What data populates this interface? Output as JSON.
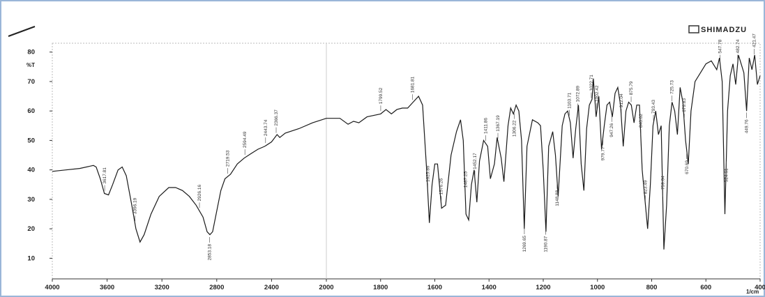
{
  "chart_data": {
    "type": "line",
    "brand": "SHIMADZU",
    "y_label": "%T",
    "x_label": "1/cm",
    "xlim": [
      4000,
      400
    ],
    "x_break": 2000,
    "ylim": [
      3,
      83
    ],
    "xticks": [
      4000,
      3600,
      3200,
      2800,
      2400,
      2000,
      1800,
      1600,
      1400,
      1200,
      1000,
      800,
      600,
      400
    ],
    "yticks": [
      10,
      20,
      30,
      40,
      50,
      60,
      70,
      80
    ],
    "color": "#1a1a1a",
    "x": [
      4000,
      3900,
      3800,
      3700,
      3680,
      3650,
      3620,
      3590,
      3560,
      3520,
      3490,
      3460,
      3420,
      3390,
      3360,
      3330,
      3280,
      3220,
      3150,
      3100,
      3050,
      3000,
      2950,
      2900,
      2870,
      2850,
      2830,
      2800,
      2770,
      2740,
      2700,
      2650,
      2600,
      2550,
      2500,
      2450,
      2400,
      2360,
      2340,
      2300,
      2200,
      2100,
      2000,
      1950,
      1920,
      1900,
      1880,
      1850,
      1800,
      1780,
      1760,
      1740,
      1720,
      1700,
      1680,
      1660,
      1645,
      1630,
      1620,
      1610,
      1600,
      1590,
      1575,
      1560,
      1540,
      1520,
      1505,
      1495,
      1485,
      1475,
      1465,
      1455,
      1445,
      1435,
      1420,
      1405,
      1395,
      1380,
      1370,
      1355,
      1345,
      1330,
      1320,
      1310,
      1300,
      1290,
      1280,
      1270,
      1260,
      1240,
      1220,
      1210,
      1200,
      1190,
      1180,
      1165,
      1155,
      1145,
      1130,
      1120,
      1110,
      1100,
      1090,
      1080,
      1070,
      1060,
      1050,
      1040,
      1030,
      1020,
      1015,
      1005,
      995,
      985,
      975,
      965,
      955,
      945,
      935,
      925,
      915,
      905,
      895,
      885,
      875,
      865,
      855,
      845,
      835,
      825,
      815,
      805,
      795,
      785,
      775,
      765,
      755,
      745,
      735,
      725,
      715,
      705,
      695,
      685,
      675,
      665,
      655,
      640,
      620,
      600,
      580,
      560,
      550,
      540,
      530,
      520,
      510,
      500,
      490,
      480,
      470,
      460,
      450,
      440,
      430,
      420,
      410,
      400
    ],
    "y": [
      39.5,
      40,
      40.5,
      41.5,
      41,
      37,
      32,
      31.5,
      35,
      40,
      41,
      38,
      28,
      20,
      15.5,
      18,
      25,
      31,
      34,
      34,
      33,
      31,
      28,
      24,
      19,
      18,
      19,
      26,
      33,
      37,
      38.5,
      42,
      44,
      45.5,
      47,
      48,
      49.5,
      52,
      51,
      52.5,
      54,
      56,
      57.5,
      57.5,
      55.5,
      56.5,
      56,
      58,
      59,
      60.5,
      59,
      60.5,
      61,
      61,
      63,
      65,
      62,
      40,
      22,
      35,
      42,
      42,
      27,
      28,
      45,
      53,
      57,
      50,
      25,
      23,
      35,
      40,
      29,
      43,
      50,
      48,
      37,
      42,
      51,
      44,
      36,
      55,
      61,
      59,
      62,
      60,
      50,
      20,
      48,
      57,
      56,
      55,
      40,
      19,
      48,
      53,
      45,
      31,
      55,
      59,
      60,
      56,
      44,
      54,
      62,
      42,
      33,
      54,
      62,
      64,
      71,
      58,
      65,
      47,
      55,
      62,
      63,
      58,
      66,
      68,
      62,
      48,
      60,
      63,
      62,
      56,
      62,
      62,
      40,
      30,
      20,
      35,
      55,
      60,
      52,
      55,
      13,
      28,
      55,
      63,
      60,
      52,
      68,
      63,
      50,
      42,
      60,
      70,
      73,
      76,
      77,
      74,
      78,
      70,
      25,
      60,
      72,
      76,
      69,
      79,
      76,
      73,
      60,
      78,
      74,
      79,
      69,
      72
    ],
    "peaks": [
      3617.81,
      3396.19,
      2926.16,
      2853.18,
      2719.53,
      2594.49,
      2443.74,
      2366.37,
      1799.52,
      1681.81,
      1625.89,
      1576.26,
      1487.25,
      1452.17,
      1411.86,
      1367.19,
      1306.22,
      1269.65,
      1190.87,
      1148.88,
      1103.71,
      1072.89,
      1022.71,
      1002.42,
      979.77,
      947.26,
      912.04,
      875.79,
      840.02,
      823.49,
      793.43,
      759.04,
      725.73,
      679.83,
      670.69,
      547.78,
      524.61,
      482.74,
      449.76,
      421.47
    ]
  }
}
